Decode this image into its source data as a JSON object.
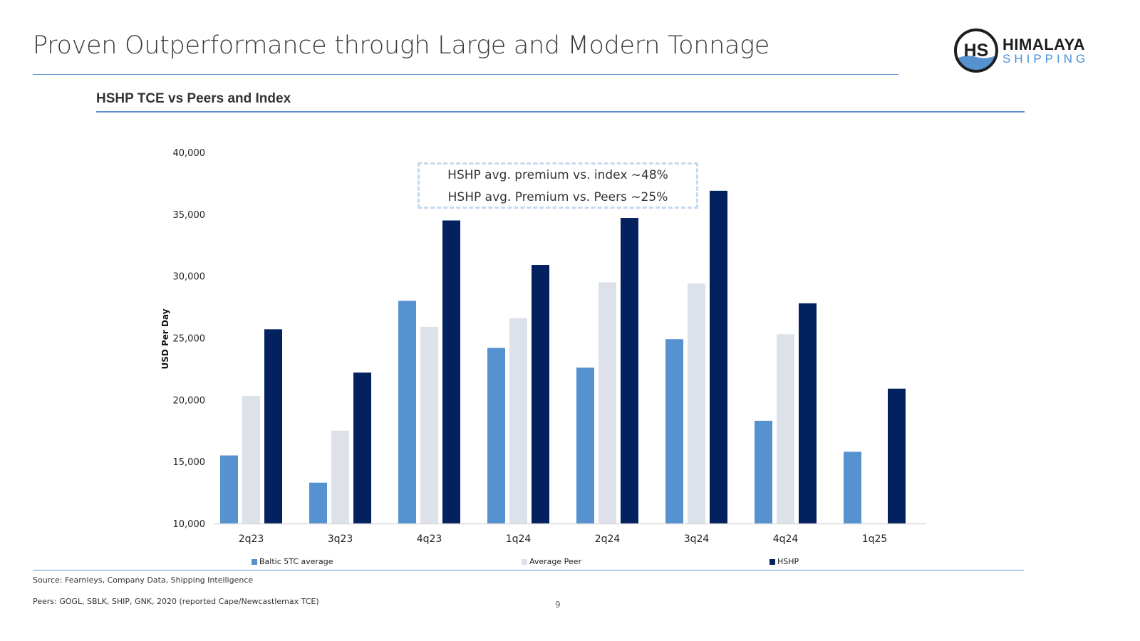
{
  "slide": {
    "title": "Proven Outperformance through Large and Modern Tonnage",
    "subtitle": "HSHP TCE vs Peers and Index",
    "page_number": "9",
    "source": "Source: Fearnleys, Company Data, Shipping Intelligence",
    "peers_note": "Peers: GOGL, SBLK, SHIP, GNK, 2020 (reported Cape/Newcastlemax TCE)"
  },
  "logo": {
    "monogram": "HS",
    "line1": "HIMALAYA",
    "line2": "SHIPPING",
    "colors": {
      "dark": "#1e1e1e",
      "accent": "#4a90d9"
    }
  },
  "callout": {
    "line1": "HSHP avg. premium vs. index ~48%",
    "line2": "HSHP avg. Premium vs. Peers ~25%"
  },
  "chart_data": {
    "type": "bar",
    "title": "HSHP TCE vs Peers and Index",
    "xlabel": "",
    "ylabel": "USD Per Day",
    "ylim": [
      10000,
      40000
    ],
    "yticks": [
      10000,
      15000,
      20000,
      25000,
      30000,
      35000,
      40000
    ],
    "ytick_labels": [
      "10,000",
      "15,000",
      "20,000",
      "25,000",
      "30,000",
      "35,000",
      "40,000"
    ],
    "grid": false,
    "legend_position": "bottom",
    "categories": [
      "2q23",
      "3q23",
      "4q23",
      "1q24",
      "2q24",
      "3q24",
      "4q24",
      "1q25"
    ],
    "series": [
      {
        "name": "Baltic 5TC average",
        "color": "#5692cf",
        "values": [
          15500,
          13300,
          28000,
          24200,
          22600,
          24900,
          18300,
          15800
        ]
      },
      {
        "name": "Average Peer",
        "color": "#dce1ea",
        "values": [
          20300,
          17500,
          25900,
          26600,
          29500,
          29400,
          25300,
          null
        ]
      },
      {
        "name": "HSHP",
        "color": "#03215f",
        "values": [
          25700,
          22200,
          34500,
          30900,
          34700,
          36900,
          27800,
          20900
        ]
      }
    ]
  }
}
